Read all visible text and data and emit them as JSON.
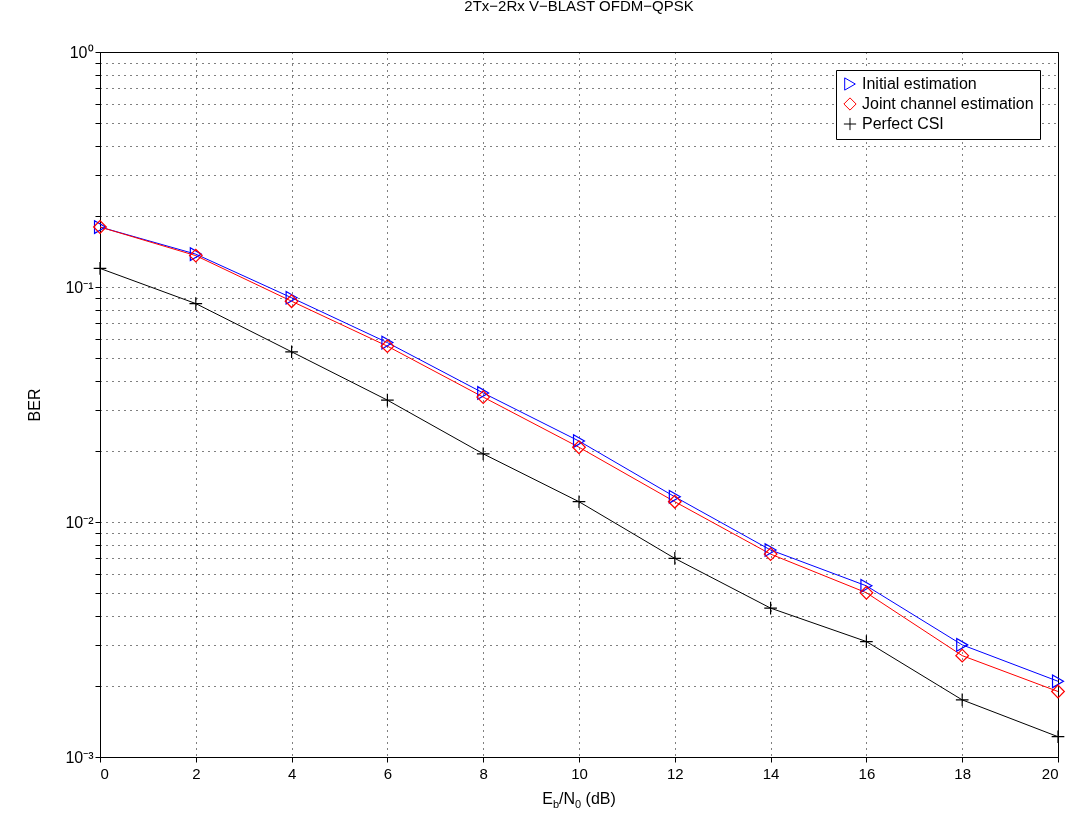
{
  "chart_data": {
    "type": "line",
    "title": "2Tx−2Rx V−BLAST OFDM−QPSK",
    "xlabel": "E$_{b}$/N$_{0}$ (dB)",
    "ylabel": "BER",
    "x": [
      0,
      2,
      4,
      6,
      8,
      10,
      12,
      14,
      16,
      18,
      20
    ],
    "series": [
      {
        "name": "Initial estimation",
        "color": "#0000ff",
        "marker": "triangle",
        "values": [
          0.18,
          0.138,
          0.09,
          0.058,
          0.0354,
          0.0221,
          0.0128,
          0.0076,
          0.00535,
          0.003,
          0.0021
        ]
      },
      {
        "name": "Joint channel estimation",
        "color": "#ff0000",
        "marker": "diamond",
        "values": [
          0.18,
          0.136,
          0.087,
          0.056,
          0.034,
          0.0208,
          0.0122,
          0.0073,
          0.005,
          0.0027,
          0.0019
        ]
      },
      {
        "name": "Perfect CSI",
        "color": "#000000",
        "marker": "cross",
        "values": [
          0.12,
          0.085,
          0.053,
          0.033,
          0.0195,
          0.0122,
          0.007,
          0.0043,
          0.0031,
          0.00175,
          0.00122
        ]
      }
    ],
    "log": "y",
    "xlim": [
      0,
      20
    ],
    "ylim": [
      0.001,
      1
    ],
    "xticks": [
      0,
      2,
      4,
      6,
      8,
      10,
      12,
      14,
      16,
      18,
      20
    ],
    "yticks": [
      {
        "value": 0.001,
        "label": "10⁻³"
      },
      {
        "value": 0.002,
        "label": null
      },
      {
        "value": 0.003,
        "label": null
      },
      {
        "value": 0.004,
        "label": null
      },
      {
        "value": 0.005,
        "label": null
      },
      {
        "value": 0.006,
        "label": null
      },
      {
        "value": 0.007,
        "label": null
      },
      {
        "value": 0.008,
        "label": null
      },
      {
        "value": 0.009,
        "label": null
      },
      {
        "value": 0.01,
        "label": "10⁻²"
      },
      {
        "value": 0.02,
        "label": null
      },
      {
        "value": 0.03,
        "label": null
      },
      {
        "value": 0.04,
        "label": null
      },
      {
        "value": 0.05,
        "label": null
      },
      {
        "value": 0.06,
        "label": null
      },
      {
        "value": 0.07,
        "label": null
      },
      {
        "value": 0.08,
        "label": null
      },
      {
        "value": 0.09,
        "label": null
      },
      {
        "value": 0.1,
        "label": "10⁻¹"
      },
      {
        "value": 0.2,
        "label": null
      },
      {
        "value": 0.3,
        "label": null
      },
      {
        "value": 0.4,
        "label": null
      },
      {
        "value": 0.5,
        "label": null
      },
      {
        "value": 0.6,
        "label": null
      },
      {
        "value": 0.7,
        "label": null
      },
      {
        "value": 0.8,
        "label": null
      },
      {
        "value": 0.9,
        "label": null
      },
      {
        "value": 1,
        "label": "10⁰"
      }
    ],
    "grid": true,
    "legend": "top right",
    "line_style": "solid"
  }
}
